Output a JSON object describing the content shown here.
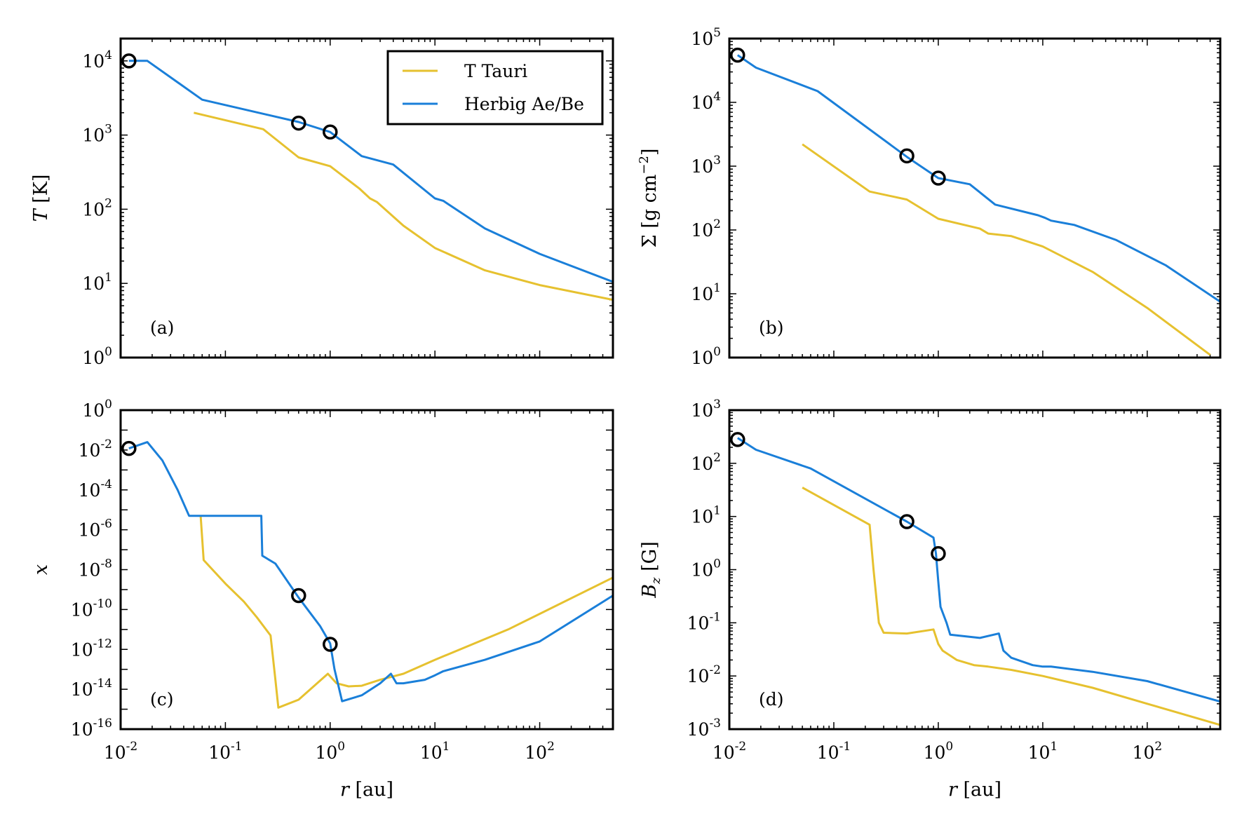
{
  "figure": {
    "colors": {
      "t_tauri": "#e6c12f",
      "herbig": "#1a7fd9",
      "marker": "#000000"
    },
    "legend": {
      "location": "upper-center of panel (a)",
      "entries": [
        "T Tauri",
        "Herbig Ae/Be"
      ]
    },
    "shared_x": {
      "label_var": "r",
      "label_unit": "[au]",
      "scale": "log",
      "xlim": [
        0.01,
        500
      ],
      "tick_exponents": [
        -2,
        -1,
        0,
        1,
        2
      ]
    }
  },
  "chart_data": [
    {
      "id": "a",
      "type": "line",
      "tag": "(a)",
      "ylabel": {
        "var": "T",
        "sub": "",
        "unit": "[K]"
      },
      "yscale": "log",
      "ylim": [
        1,
        20000
      ],
      "ytick_exponents": [
        0,
        1,
        2,
        3,
        4
      ],
      "show_xlabel": false,
      "show_xtick_labels": false,
      "series": [
        {
          "name": "T Tauri",
          "color": "t_tauri",
          "x": [
            0.05,
            0.23,
            0.5,
            1.0,
            1.9,
            2.4,
            2.8,
            5,
            10,
            30,
            100,
            500
          ],
          "y": [
            2000,
            1200,
            500,
            380,
            190,
            140,
            125,
            60,
            30,
            15,
            9.5,
            6
          ]
        },
        {
          "name": "Herbig Ae/Be",
          "color": "herbig",
          "x": [
            0.012,
            0.018,
            0.06,
            0.5,
            1.0,
            2.0,
            4.0,
            10,
            12,
            30,
            100,
            500
          ],
          "y": [
            10000,
            10000,
            3000,
            1500,
            1100,
            520,
            400,
            140,
            130,
            55,
            25,
            10.5
          ]
        }
      ],
      "markers": {
        "x": [
          0.012,
          0.5,
          1.0
        ],
        "y": [
          10000,
          1450,
          1100
        ]
      }
    },
    {
      "id": "b",
      "type": "line",
      "tag": "(b)",
      "ylabel": {
        "var": "Σ",
        "sub": "",
        "unit": "[g cm",
        "unit_exp": "−2",
        "unit_close": "]"
      },
      "yscale": "log",
      "ylim": [
        1,
        100000
      ],
      "ytick_exponents": [
        0,
        1,
        2,
        3,
        4,
        5
      ],
      "show_xlabel": false,
      "show_xtick_labels": false,
      "series": [
        {
          "name": "T Tauri",
          "color": "t_tauri",
          "x": [
            0.05,
            0.22,
            0.5,
            1.0,
            2.5,
            3.0,
            5,
            10,
            30,
            100,
            400
          ],
          "y": [
            2200,
            400,
            300,
            150,
            105,
            88,
            80,
            55,
            22,
            6,
            1.1
          ]
        },
        {
          "name": "Herbig Ae/Be",
          "color": "herbig",
          "x": [
            0.012,
            0.018,
            0.07,
            0.5,
            1.0,
            2.0,
            3.5,
            9,
            10.5,
            12,
            20,
            50,
            150,
            500
          ],
          "y": [
            55000,
            35000,
            15000,
            1400,
            650,
            520,
            250,
            170,
            155,
            140,
            120,
            70,
            28,
            7.5
          ]
        }
      ],
      "markers": {
        "x": [
          0.012,
          0.5,
          1.0
        ],
        "y": [
          55000,
          1450,
          650
        ]
      }
    },
    {
      "id": "c",
      "type": "line",
      "tag": "(c)",
      "ylabel": {
        "var": "x",
        "sub": "",
        "unit": ""
      },
      "yscale": "log",
      "ylim": [
        1e-16,
        1
      ],
      "ytick_exponents": [
        -16,
        -14,
        -12,
        -10,
        -8,
        -6,
        -4,
        -2,
        0
      ],
      "show_xlabel": true,
      "show_xtick_labels": true,
      "series": [
        {
          "name": "T Tauri",
          "color": "t_tauri",
          "x": [
            0.058,
            0.062,
            0.1,
            0.15,
            0.2,
            0.27,
            0.3,
            0.32,
            0.5,
            0.95,
            1.15,
            1.5,
            2.0,
            3.0,
            5,
            10,
            50,
            500
          ],
          "y": [
            5e-06,
            3e-08,
            2e-09,
            2.5e-10,
            4e-11,
            5e-12,
            3e-14,
            1.2e-15,
            3e-15,
            6e-14,
            2e-14,
            1.4e-14,
            1.5e-14,
            3e-14,
            6e-14,
            3e-13,
            1e-11,
            4e-09
          ]
        },
        {
          "name": "Herbig Ae/Be",
          "color": "herbig",
          "x": [
            0.012,
            0.018,
            0.025,
            0.035,
            0.045,
            0.22,
            0.225,
            0.3,
            0.5,
            0.8,
            1.0,
            1.1,
            1.3,
            2.0,
            3.0,
            3.8,
            4.3,
            5,
            8,
            10,
            12,
            30,
            100,
            500
          ],
          "y": [
            0.012,
            0.025,
            0.003,
            0.0001,
            5e-06,
            5e-06,
            5e-08,
            2e-08,
            4e-10,
            1.5e-11,
            2e-12,
            1e-13,
            2.5e-15,
            5e-15,
            2e-14,
            6e-14,
            2e-14,
            2e-14,
            3e-14,
            5e-14,
            8e-14,
            3e-13,
            2.5e-12,
            5e-10
          ]
        }
      ],
      "markers": {
        "x": [
          0.012,
          0.5,
          1.0
        ],
        "y": [
          0.012,
          5e-10,
          1.8e-12
        ]
      }
    },
    {
      "id": "d",
      "type": "line",
      "tag": "(d)",
      "ylabel": {
        "var": "B",
        "sub": "z",
        "unit": "[G]"
      },
      "yscale": "log",
      "ylim": [
        0.001,
        1000
      ],
      "ytick_exponents": [
        -3,
        -2,
        -1,
        0,
        1,
        2,
        3
      ],
      "show_xlabel": true,
      "show_xtick_labels": true,
      "series": [
        {
          "name": "T Tauri",
          "color": "t_tauri",
          "x": [
            0.05,
            0.22,
            0.24,
            0.27,
            0.3,
            0.5,
            0.9,
            1.0,
            1.1,
            1.5,
            2.2,
            3.0,
            5,
            10,
            30,
            100,
            500
          ],
          "y": [
            35,
            7,
            1,
            0.1,
            0.065,
            0.063,
            0.075,
            0.04,
            0.03,
            0.02,
            0.016,
            0.015,
            0.013,
            0.01,
            0.006,
            0.003,
            0.0012
          ]
        },
        {
          "name": "Herbig Ae/Be",
          "color": "herbig",
          "x": [
            0.012,
            0.018,
            0.06,
            0.5,
            0.9,
            0.95,
            1.0,
            1.05,
            1.2,
            1.3,
            2.5,
            3.8,
            4.2,
            5,
            8,
            10,
            12,
            30,
            100,
            500
          ],
          "y": [
            300,
            180,
            80,
            8,
            4,
            2,
            0.6,
            0.2,
            0.1,
            0.06,
            0.052,
            0.063,
            0.03,
            0.022,
            0.016,
            0.015,
            0.015,
            0.012,
            0.008,
            0.0033
          ]
        }
      ],
      "markers": {
        "x": [
          0.012,
          0.5,
          1.0
        ],
        "y": [
          280,
          8,
          2
        ]
      }
    }
  ]
}
